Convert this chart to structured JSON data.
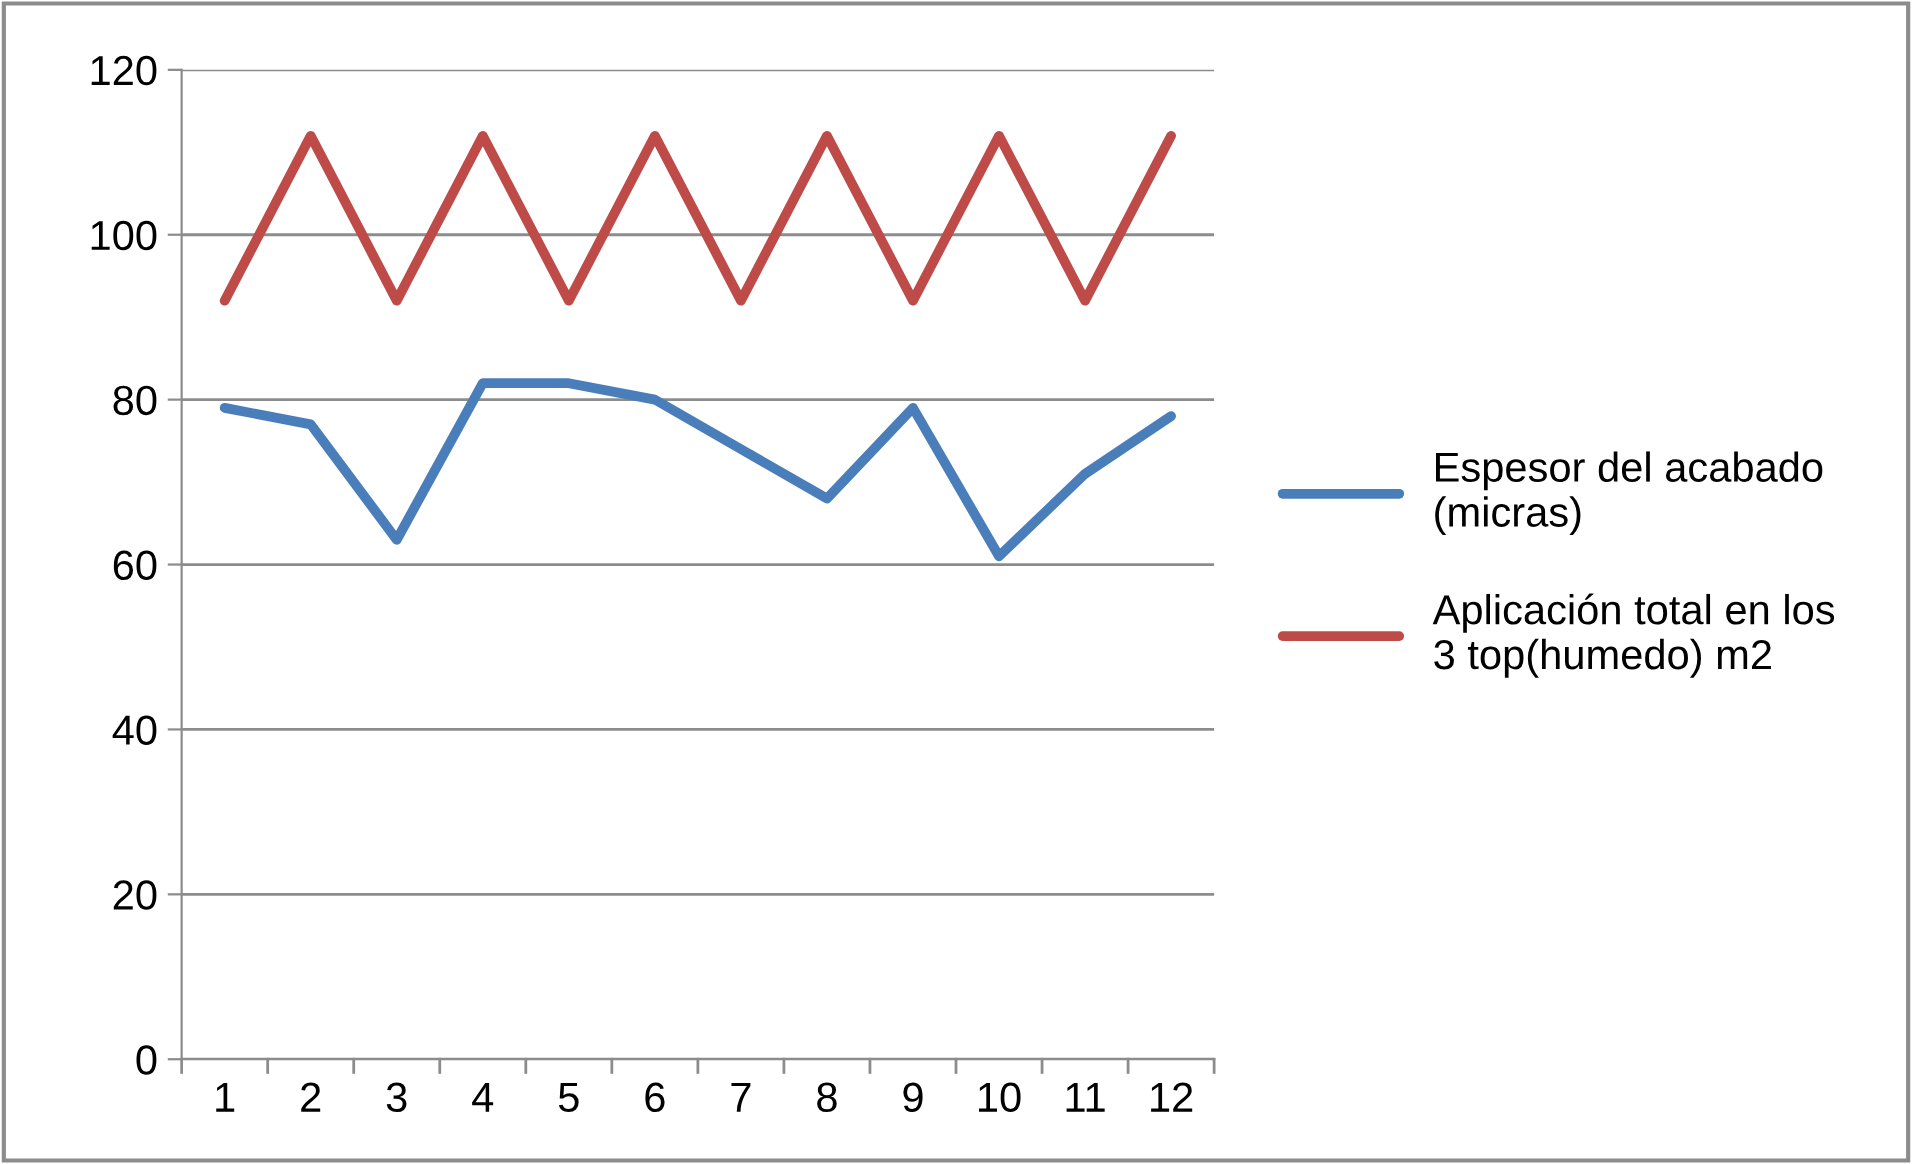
{
  "chart_data": {
    "type": "line",
    "categories": [
      "1",
      "2",
      "3",
      "4",
      "5",
      "6",
      "7",
      "8",
      "9",
      "10",
      "11",
      "12"
    ],
    "series": [
      {
        "name": "Espesor del acabado\n(micras)",
        "color": "#4a7ebb",
        "values": [
          79,
          77,
          63,
          82,
          82,
          80,
          74,
          68,
          79,
          61,
          71,
          78
        ]
      },
      {
        "name": "Aplicación total en los\n3 top(humedo) m2",
        "color": "#be4b48",
        "values": [
          92,
          112,
          92,
          112,
          92,
          112,
          92,
          112,
          92,
          112,
          92,
          112
        ]
      }
    ],
    "ylim": [
      0,
      120
    ],
    "yticks": [
      0,
      20,
      40,
      60,
      80,
      100,
      120
    ],
    "grid": "y",
    "legend": "right",
    "marker": "none",
    "line_style": "solid"
  }
}
